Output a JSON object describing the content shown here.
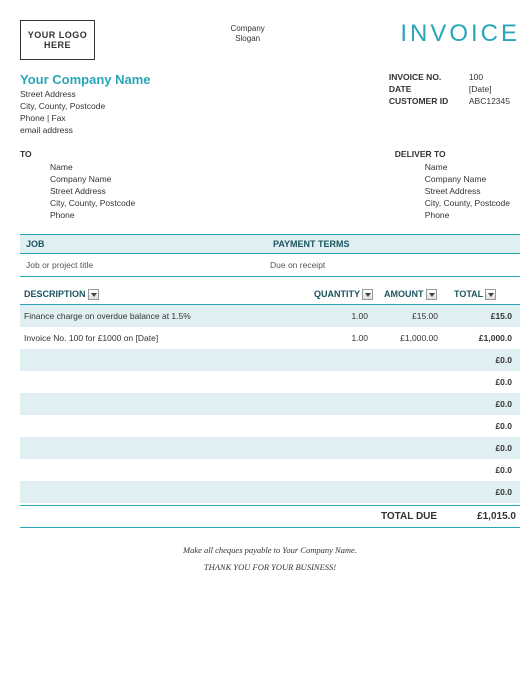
{
  "header": {
    "logo_text": "YOUR LOGO HERE",
    "company_label": "Company",
    "slogan_label": "Slogan",
    "invoice_title": "INVOICE"
  },
  "company": {
    "name": "Your Company Name",
    "street": "Street Address",
    "city": "City, County, Postcode",
    "phone": "Phone | Fax",
    "email": "email address"
  },
  "invoice_meta": {
    "no_label": "INVOICE NO.",
    "no_value": "100",
    "date_label": "DATE",
    "date_value": "[Date]",
    "cust_label": "CUSTOMER ID",
    "cust_value": "ABC12345"
  },
  "to": {
    "heading": "TO",
    "name": "Name",
    "company": "Company Name",
    "street": "Street Address",
    "city": "City, County, Postcode",
    "phone": "Phone"
  },
  "deliver": {
    "heading": "DELIVER TO",
    "name": "Name",
    "company": "Company Name",
    "street": "Street Address",
    "city": "City, County, Postcode",
    "phone": "Phone"
  },
  "job": {
    "job_label": "JOB",
    "terms_label": "PAYMENT TERMS",
    "job_value": "Job or project title",
    "terms_value": "Due on receipt"
  },
  "table": {
    "headers": {
      "desc": "DESCRIPTION",
      "qty": "QUANTITY",
      "amt": "AMOUNT",
      "tot": "TOTAL"
    },
    "rows": [
      {
        "desc": "Finance charge on overdue balance at 1.5%",
        "qty": "1.00",
        "amt": "£15.00",
        "tot": "£15.0"
      },
      {
        "desc": "Invoice No. 100 for £1000 on [Date]",
        "qty": "1.00",
        "amt": "£1,000.00",
        "tot": "£1,000.0"
      },
      {
        "desc": "",
        "qty": "",
        "amt": "",
        "tot": "£0.0"
      },
      {
        "desc": "",
        "qty": "",
        "amt": "",
        "tot": "£0.0"
      },
      {
        "desc": "",
        "qty": "",
        "amt": "",
        "tot": "£0.0"
      },
      {
        "desc": "",
        "qty": "",
        "amt": "",
        "tot": "£0.0"
      },
      {
        "desc": "",
        "qty": "",
        "amt": "",
        "tot": "£0.0"
      },
      {
        "desc": "",
        "qty": "",
        "amt": "",
        "tot": "£0.0"
      },
      {
        "desc": "",
        "qty": "",
        "amt": "",
        "tot": "£0.0"
      }
    ],
    "total_due_label": "TOTAL DUE",
    "total_due_value": "£1,015.0"
  },
  "footer": {
    "line1": "Make all cheques payable to Your Company Name.",
    "line2": "THANK YOU FOR YOUR BUSINESS!"
  },
  "colors": {
    "accent": "#2aa5b8",
    "stripe": "#e0eff1"
  }
}
